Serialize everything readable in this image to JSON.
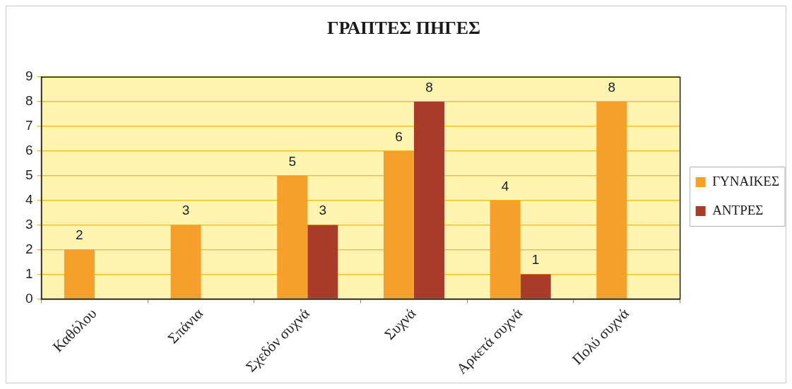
{
  "chart_data": {
    "type": "bar",
    "title": "ΓΡΑΠΤΕΣ ΠΗΓΕΣ",
    "categories": [
      "Καθόλου",
      "Σπάνια",
      "Σχεδόν συχνά",
      "Συχνά",
      "Αρκετά συχνά",
      "Πολύ συχνά"
    ],
    "series": [
      {
        "name": "ΓΥΝΑΙΚΕΣ",
        "color": "#f5a02a",
        "values": [
          2,
          3,
          5,
          6,
          4,
          8
        ]
      },
      {
        "name": "ΑΝΤΡΕΣ",
        "color": "#a83c28",
        "values": [
          null,
          null,
          3,
          8,
          1,
          null
        ]
      }
    ],
    "ylim": [
      0,
      9
    ],
    "yticks": [
      0,
      1,
      2,
      3,
      4,
      5,
      6,
      7,
      8,
      9
    ],
    "grid": "y",
    "legend": "right",
    "data_labels": true
  }
}
